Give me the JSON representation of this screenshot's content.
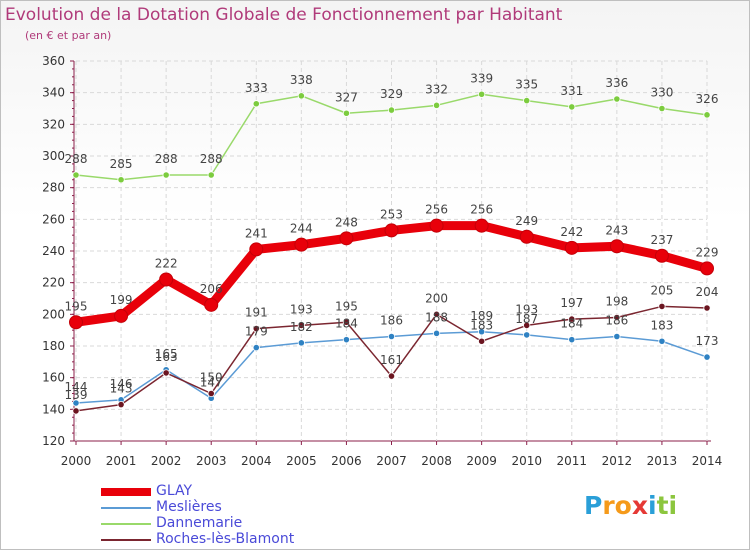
{
  "header": {
    "title": "Evolution de la Dotation Globale de Fonctionnement par Habitant",
    "subtitle": "(en € et par an)"
  },
  "logo": {
    "letters": [
      "P",
      "r",
      "o",
      "x",
      "i",
      "t",
      "i"
    ],
    "colors": [
      "#2a9fd8",
      "#f59a1a",
      "#f59a1a",
      "#e53935",
      "#2a9fd8",
      "#8cc63e",
      "#8cc63e"
    ]
  },
  "chart_data": {
    "type": "line",
    "title": "Evolution de la Dotation Globale de Fonctionnement par Habitant",
    "subtitle": "(en € et par an)",
    "xlabel": "",
    "ylabel": "",
    "ylim": [
      120,
      360
    ],
    "yticks": [
      120,
      140,
      160,
      180,
      200,
      220,
      240,
      260,
      280,
      300,
      320,
      340,
      360
    ],
    "grid": true,
    "categories": [
      "2000",
      "2001",
      "2002",
      "2003",
      "2004",
      "2005",
      "2006",
      "2007",
      "2008",
      "2009",
      "2010",
      "2011",
      "2012",
      "2013",
      "2014"
    ],
    "series": [
      {
        "name": "GLAY",
        "color": "#e8000a",
        "point_color": "#e8000a",
        "label_color": "#444444",
        "weight": "bold",
        "values": [
          195,
          199,
          222,
          206,
          241,
          244,
          248,
          253,
          256,
          256,
          249,
          242,
          243,
          237,
          229
        ]
      },
      {
        "name": "Meslières",
        "color": "#5b9bd5",
        "point_color": "#2f82c3",
        "label_color": "#444444",
        "weight": "normal",
        "values": [
          144,
          146,
          165,
          147,
          179,
          182,
          184,
          186,
          188,
          189,
          187,
          184,
          186,
          183,
          173
        ]
      },
      {
        "name": "Dannemarie",
        "color": "#99d96a",
        "point_color": "#7ccc3e",
        "label_color": "#444444",
        "weight": "normal",
        "values": [
          288,
          285,
          288,
          288,
          333,
          338,
          327,
          329,
          332,
          339,
          335,
          331,
          336,
          330,
          326
        ]
      },
      {
        "name": "Roches-lès-Blamont",
        "color": "#7b2630",
        "point_color": "#6b1520",
        "label_color": "#444444",
        "weight": "normal",
        "values": [
          139,
          143,
          163,
          150,
          191,
          193,
          195,
          161,
          200,
          183,
          193,
          197,
          198,
          205,
          204
        ]
      }
    ],
    "legend_position": "bottom-left"
  }
}
